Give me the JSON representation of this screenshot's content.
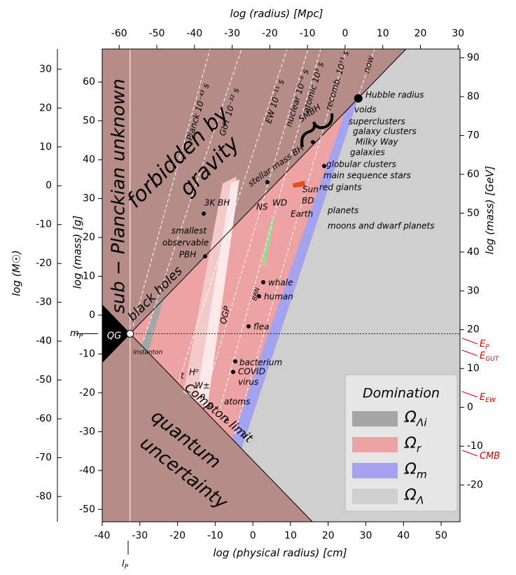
{
  "axes": {
    "bottom": {
      "title": "log (physical radius) [cm]",
      "lim": [
        -40,
        55
      ],
      "ticks": [
        -40,
        -30,
        -20,
        -10,
        0,
        10,
        20,
        30,
        40,
        50
      ]
    },
    "top": {
      "title": "log (radius) [Mpc]",
      "lim": [
        -64.5,
        30.5
      ],
      "ticks": [
        -60,
        -50,
        -40,
        -30,
        -20,
        -10,
        0,
        10,
        20,
        30
      ]
    },
    "left": {
      "title": "log (mass) [g]",
      "lim": [
        -53.2,
        68.5
      ],
      "ticks": [
        -50,
        -40,
        -30,
        -20,
        -10,
        0,
        10,
        20,
        30,
        40,
        50,
        60
      ]
    },
    "left_outer": {
      "title": "log (M☉)",
      "lim": [
        -86.5,
        35.2
      ],
      "ticks": [
        -80,
        -70,
        -60,
        -50,
        -40,
        -30,
        -20,
        -10,
        0,
        10,
        20,
        30
      ]
    },
    "right": {
      "title": "log (mass) [GeV]",
      "lim": [
        -29.45,
        92.25
      ],
      "ticks": [
        -20,
        -10,
        0,
        10,
        20,
        30,
        40,
        50,
        60,
        70,
        80,
        90
      ]
    }
  },
  "regions": [
    "sub − Planckian unknown",
    "forbidden by",
    "gravity",
    "quantum",
    "uncertainty",
    "black holes",
    "Compton limit",
    "QG",
    "QGP",
    "BBN"
  ],
  "epochs": [
    "Planck 10⁻⁴³ s",
    "GUT 10⁻³² s",
    "EW 10⁻¹¹ s",
    "nuclear 10⁻⁶ s",
    "atomic 10³ s",
    "recomb. 10¹³ s",
    "now"
  ],
  "objects": [
    "Hubble radius",
    "voids",
    "superclusters",
    "galaxy clusters",
    "Milky Way",
    "galaxies",
    "globular clusters",
    "main sequence stars",
    "red giants",
    "Sun",
    "BD",
    "planets",
    "Earth",
    "moons and dwarf planets",
    "WD",
    "NS",
    "3K BH",
    "stellar mass BH",
    "SMBH",
    "smallest",
    "observable",
    "PBH",
    "whale",
    "human",
    "flea",
    "bacterium",
    "COVID",
    "virus",
    "atoms",
    "e",
    "ν",
    "t",
    "H⁰",
    "W±",
    "n",
    "p",
    "instanton"
  ],
  "markers": [
    {
      "main": "m",
      "sub": "P"
    },
    {
      "main": "l",
      "sub": "P"
    },
    {
      "main": "E",
      "sub": "P"
    },
    {
      "main": "E",
      "sub": "GUT"
    },
    {
      "main": "E",
      "sub": "EW"
    },
    {
      "main": "CMB"
    }
  ],
  "legend": {
    "title": "Domination",
    "items": [
      {
        "main": "Ω",
        "sub": "Λi",
        "color": "#a6a6a6"
      },
      {
        "main": "Ω",
        "sub": "r",
        "color": "#eda3a3"
      },
      {
        "main": "Ω",
        "sub": "m",
        "color": "#a3a3ef"
      },
      {
        "main": "Ω",
        "sub": "Λ",
        "color": "#cfcfcf"
      }
    ]
  }
}
